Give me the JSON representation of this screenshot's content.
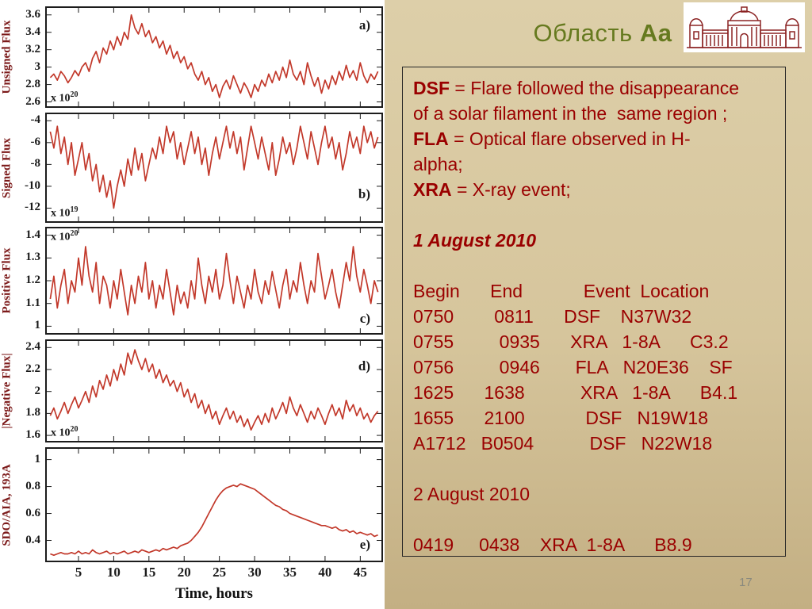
{
  "slide": {
    "title_prefix": "Область ",
    "title_bold": "Aa",
    "page_number": "17"
  },
  "colors": {
    "line": "#c2382a",
    "dark_red_text": "#9a0000",
    "title_green": "#667a1f",
    "slide_background": "#d8c89f",
    "axis_title": "#7c1a1a"
  },
  "logo": {
    "icon": "observatory-building"
  },
  "info_box": {
    "definition_lines": [
      {
        "term": "DSF",
        "rest": " = Flare followed the disappearance"
      },
      {
        "term": "",
        "rest": "of a solar filament in the  same region ;"
      },
      {
        "term": "FLA",
        "rest": " = Optical flare observed in H-"
      },
      {
        "term": "",
        "rest": "alpha;"
      },
      {
        "term": "XRA",
        "rest": " = X-ray event;"
      }
    ],
    "section1": {
      "heading": "1 August 2010",
      "rows": [
        "Begin      End            Event  Location",
        "0750        0811      DSF    N37W32",
        "0755         0935      XRA   1-8A      C3.2",
        "0756         0946       FLA   N20E36    SF",
        "1625      1638           XRA   1-8A      B4.1",
        "1655      2100            DSF   N19W18",
        "A1712   B0504           DSF   N22W18"
      ]
    },
    "section2": {
      "heading": "2 August 2010",
      "rows": [
        "0419     0438    XRA  1-8A      B8.9"
      ]
    }
  },
  "x_axis": {
    "lim": [
      0.5,
      48
    ],
    "ticks": [
      5,
      10,
      15,
      20,
      25,
      30,
      35,
      40,
      45
    ],
    "label": "Time, hours"
  },
  "chart_data": [
    {
      "type": "line",
      "ylabel": "Unsigned  Flux",
      "panel_label": "a)",
      "multiplier": {
        "base": "x 10",
        "exp": "20"
      },
      "yticks": [
        3.6,
        3.4,
        3.2,
        3,
        2.8,
        2.6
      ],
      "ylim": [
        2.55,
        3.68
      ],
      "x_start": 1,
      "x_step": 0.5,
      "values": [
        2.88,
        2.92,
        2.85,
        2.95,
        2.9,
        2.82,
        2.88,
        2.96,
        2.9,
        3.0,
        3.05,
        2.95,
        3.1,
        3.18,
        3.05,
        3.22,
        3.15,
        3.3,
        3.2,
        3.35,
        3.25,
        3.4,
        3.32,
        3.6,
        3.45,
        3.38,
        3.5,
        3.35,
        3.42,
        3.28,
        3.35,
        3.22,
        3.3,
        3.15,
        3.25,
        3.1,
        3.18,
        3.05,
        3.12,
        2.98,
        3.05,
        2.92,
        2.85,
        2.95,
        2.8,
        2.88,
        2.72,
        2.8,
        2.65,
        2.78,
        2.85,
        2.75,
        2.9,
        2.8,
        2.7,
        2.82,
        2.75,
        2.65,
        2.8,
        2.72,
        2.85,
        2.78,
        2.92,
        2.82,
        2.95,
        2.85,
        3.0,
        2.88,
        3.08,
        2.92,
        2.85,
        2.95,
        2.8,
        3.05,
        2.9,
        2.78,
        2.88,
        2.7,
        2.85,
        2.75,
        2.9,
        2.8,
        2.95,
        2.85,
        3.02,
        2.88,
        2.96,
        2.85,
        3.05,
        2.9,
        2.82,
        2.92,
        2.86,
        2.95
      ]
    },
    {
      "type": "line",
      "ylabel": "Signed Flux",
      "panel_label": "b)",
      "multiplier": {
        "base": "x 10",
        "exp": "19"
      },
      "yticks": [
        -4,
        -6,
        -8,
        -10,
        -12
      ],
      "ylim": [
        -13.2,
        -3.4
      ],
      "x_start": 1,
      "x_step": 0.5,
      "values": [
        -5.0,
        -6.5,
        -4.5,
        -7.0,
        -5.5,
        -8.0,
        -6.0,
        -9.0,
        -7.5,
        -6.0,
        -8.5,
        -7.0,
        -9.5,
        -8.0,
        -10.5,
        -9.0,
        -11.0,
        -9.5,
        -12.0,
        -10.0,
        -8.5,
        -10.0,
        -7.5,
        -9.0,
        -6.5,
        -8.5,
        -7.0,
        -9.5,
        -8.0,
        -6.5,
        -7.5,
        -5.5,
        -7.0,
        -4.5,
        -6.0,
        -5.0,
        -7.5,
        -6.0,
        -8.0,
        -6.5,
        -5.0,
        -7.0,
        -5.5,
        -8.0,
        -6.5,
        -9.0,
        -7.0,
        -5.5,
        -7.5,
        -6.0,
        -4.5,
        -6.5,
        -5.0,
        -7.0,
        -5.5,
        -8.5,
        -6.5,
        -4.5,
        -6.0,
        -7.5,
        -5.5,
        -7.0,
        -8.5,
        -6.0,
        -9.0,
        -7.5,
        -5.5,
        -7.0,
        -6.0,
        -8.0,
        -6.5,
        -4.5,
        -6.0,
        -7.5,
        -5.0,
        -6.5,
        -8.0,
        -6.0,
        -4.5,
        -6.5,
        -5.5,
        -7.5,
        -6.0,
        -8.5,
        -7.0,
        -5.0,
        -6.5,
        -5.5,
        -7.0,
        -4.5,
        -6.0,
        -5.0,
        -6.5,
        -5.5
      ]
    },
    {
      "type": "line",
      "ylabel": "Positive Flux",
      "panel_label": "c)",
      "multiplier": {
        "base": "x 10",
        "exp": "20"
      },
      "yticks": [
        1.4,
        1.3,
        1.2,
        1.1,
        1
      ],
      "ylim": [
        0.97,
        1.43
      ],
      "x_start": 1,
      "x_step": 0.5,
      "values": [
        1.12,
        1.22,
        1.08,
        1.18,
        1.25,
        1.1,
        1.2,
        1.15,
        1.3,
        1.18,
        1.35,
        1.22,
        1.15,
        1.28,
        1.1,
        1.22,
        1.18,
        1.08,
        1.2,
        1.12,
        1.25,
        1.15,
        1.05,
        1.18,
        1.1,
        1.22,
        1.15,
        1.28,
        1.12,
        1.2,
        1.08,
        1.18,
        1.12,
        1.25,
        1.15,
        1.05,
        1.18,
        1.1,
        1.15,
        1.08,
        1.2,
        1.12,
        1.3,
        1.18,
        1.1,
        1.22,
        1.15,
        1.25,
        1.12,
        1.18,
        1.32,
        1.2,
        1.1,
        1.22,
        1.15,
        1.08,
        1.18,
        1.12,
        1.25,
        1.15,
        1.1,
        1.2,
        1.14,
        1.24,
        1.16,
        1.08,
        1.18,
        1.25,
        1.12,
        1.2,
        1.15,
        1.28,
        1.18,
        1.1,
        1.2,
        1.15,
        1.32,
        1.22,
        1.12,
        1.18,
        1.25,
        1.15,
        1.08,
        1.18,
        1.28,
        1.2,
        1.35,
        1.22,
        1.15,
        1.25,
        1.18,
        1.1,
        1.2,
        1.15
      ]
    },
    {
      "type": "line",
      "ylabel": "|Negative Flux|",
      "panel_label": "d)",
      "multiplier": {
        "base": "x 10",
        "exp": "20"
      },
      "yticks": [
        2.4,
        2.2,
        2,
        1.8,
        1.6
      ],
      "ylim": [
        1.55,
        2.46
      ],
      "x_start": 1,
      "x_step": 0.5,
      "values": [
        1.78,
        1.85,
        1.75,
        1.82,
        1.9,
        1.8,
        1.88,
        1.95,
        1.85,
        1.92,
        2.0,
        1.9,
        2.05,
        1.95,
        2.1,
        2.02,
        2.15,
        2.05,
        2.2,
        2.1,
        2.25,
        2.15,
        2.35,
        2.25,
        2.38,
        2.28,
        2.2,
        2.3,
        2.18,
        2.25,
        2.12,
        2.2,
        2.08,
        2.15,
        2.05,
        2.1,
        2.0,
        2.08,
        1.95,
        2.02,
        1.9,
        1.98,
        1.85,
        1.92,
        1.8,
        1.88,
        1.75,
        1.82,
        1.7,
        1.78,
        1.85,
        1.75,
        1.82,
        1.72,
        1.78,
        1.68,
        1.75,
        1.65,
        1.72,
        1.78,
        1.7,
        1.8,
        1.72,
        1.85,
        1.75,
        1.82,
        1.9,
        1.8,
        1.95,
        1.85,
        1.78,
        1.88,
        1.8,
        1.72,
        1.82,
        1.75,
        1.85,
        1.78,
        1.7,
        1.8,
        1.88,
        1.78,
        1.85,
        1.75,
        1.92,
        1.82,
        1.88,
        1.78,
        1.85,
        1.75,
        1.8,
        1.72,
        1.78,
        1.82
      ]
    },
    {
      "type": "line",
      "ylabel": "SDO/AIA, 193A",
      "panel_label": "e)",
      "multiplier": null,
      "yticks": [
        1,
        0.8,
        0.6,
        0.4
      ],
      "ylim": [
        0.25,
        1.08
      ],
      "x_start": 1,
      "x_step": 0.5,
      "values": [
        0.3,
        0.29,
        0.3,
        0.31,
        0.3,
        0.3,
        0.31,
        0.3,
        0.32,
        0.3,
        0.31,
        0.3,
        0.33,
        0.31,
        0.3,
        0.31,
        0.32,
        0.3,
        0.31,
        0.3,
        0.31,
        0.32,
        0.3,
        0.31,
        0.32,
        0.31,
        0.33,
        0.32,
        0.31,
        0.32,
        0.33,
        0.32,
        0.34,
        0.33,
        0.34,
        0.35,
        0.34,
        0.36,
        0.37,
        0.38,
        0.4,
        0.43,
        0.46,
        0.5,
        0.55,
        0.6,
        0.65,
        0.7,
        0.74,
        0.77,
        0.79,
        0.8,
        0.81,
        0.8,
        0.82,
        0.81,
        0.8,
        0.79,
        0.78,
        0.76,
        0.74,
        0.72,
        0.7,
        0.68,
        0.66,
        0.65,
        0.63,
        0.62,
        0.6,
        0.59,
        0.58,
        0.57,
        0.56,
        0.55,
        0.54,
        0.53,
        0.52,
        0.51,
        0.51,
        0.5,
        0.49,
        0.5,
        0.48,
        0.47,
        0.48,
        0.46,
        0.47,
        0.45,
        0.46,
        0.45,
        0.44,
        0.45,
        0.43,
        0.44
      ]
    }
  ]
}
